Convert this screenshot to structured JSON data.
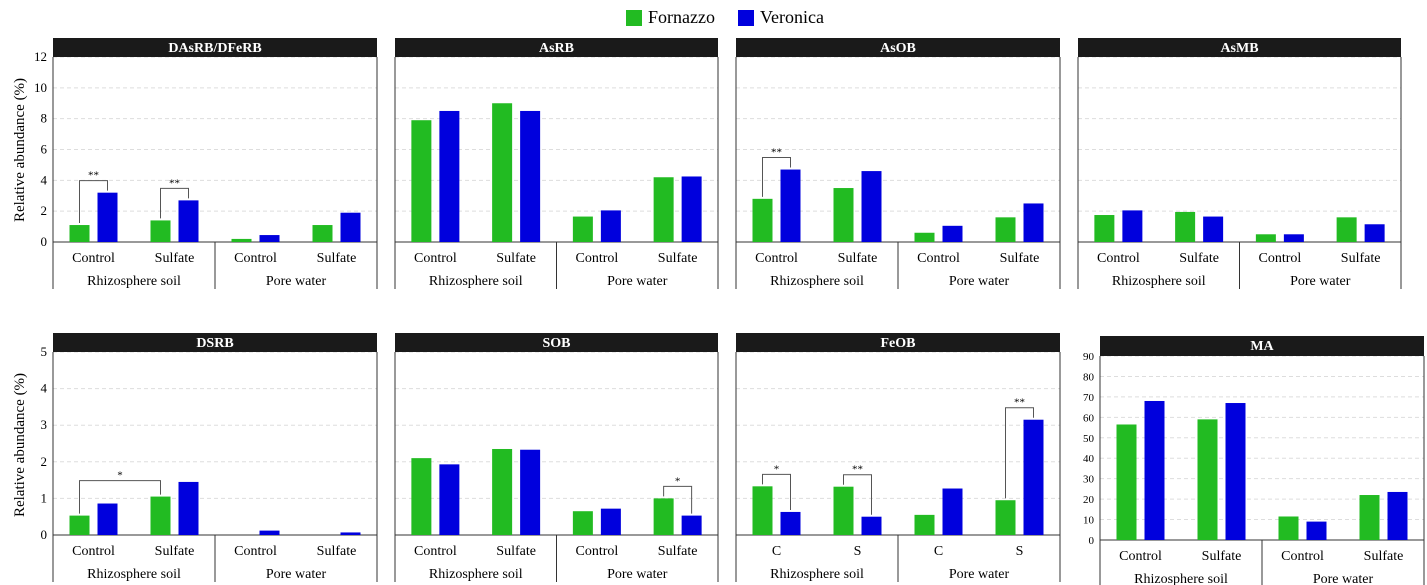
{
  "legend": {
    "series_a": "Fornazzo",
    "series_b": "Veronica"
  },
  "colors": {
    "series_a": "#22bb22",
    "series_b": "#0000dd",
    "header_bg": "#1a1a1a",
    "header_text": "#ffffff"
  },
  "ylabel": "Relative abundance (%)",
  "chart_data": [
    {
      "type": "bar",
      "title": "DAsRB/DFeRB",
      "ylim": [
        0,
        12
      ],
      "yticks": [
        0,
        2,
        4,
        6,
        8,
        10,
        12
      ],
      "categories": [
        "Control",
        "Sulfate",
        "Control",
        "Sulfate"
      ],
      "groups": [
        "Rhizosphere soil",
        "Pore water"
      ],
      "series": [
        {
          "name": "Fornazzo",
          "values": [
            1.1,
            1.4,
            0.2,
            1.1
          ]
        },
        {
          "name": "Veronica",
          "values": [
            3.2,
            2.7,
            0.45,
            1.9
          ]
        }
      ],
      "annotations": [
        {
          "category": 0,
          "label": "**"
        },
        {
          "category": 1,
          "label": "**"
        }
      ]
    },
    {
      "type": "bar",
      "title": "AsRB",
      "ylim": [
        0,
        12
      ],
      "yticks": [
        0,
        2,
        4,
        6,
        8,
        10,
        12
      ],
      "categories": [
        "Control",
        "Sulfate",
        "Control",
        "Sulfate"
      ],
      "groups": [
        "Rhizosphere soil",
        "Pore water"
      ],
      "series": [
        {
          "name": "Fornazzo",
          "values": [
            7.9,
            9.0,
            1.65,
            4.2
          ]
        },
        {
          "name": "Veronica",
          "values": [
            8.5,
            8.5,
            2.05,
            4.25
          ]
        }
      ],
      "annotations": []
    },
    {
      "type": "bar",
      "title": "AsOB",
      "ylim": [
        0,
        12
      ],
      "yticks": [
        0,
        2,
        4,
        6,
        8,
        10,
        12
      ],
      "categories": [
        "Control",
        "Sulfate",
        "Control",
        "Sulfate"
      ],
      "groups": [
        "Rhizosphere soil",
        "Pore water"
      ],
      "series": [
        {
          "name": "Fornazzo",
          "values": [
            2.8,
            3.5,
            0.6,
            1.6
          ]
        },
        {
          "name": "Veronica",
          "values": [
            4.7,
            4.6,
            1.05,
            2.5
          ]
        }
      ],
      "annotations": [
        {
          "category": 0,
          "label": "**"
        }
      ]
    },
    {
      "type": "bar",
      "title": "AsMB",
      "ylim": [
        0,
        12
      ],
      "yticks": [
        0,
        2,
        4,
        6,
        8,
        10,
        12
      ],
      "categories": [
        "Control",
        "Sulfate",
        "Control",
        "Sulfate"
      ],
      "groups": [
        "Rhizosphere soil",
        "Pore water"
      ],
      "series": [
        {
          "name": "Fornazzo",
          "values": [
            1.75,
            1.95,
            0.5,
            1.6
          ]
        },
        {
          "name": "Veronica",
          "values": [
            2.05,
            1.65,
            0.5,
            1.15
          ]
        }
      ],
      "annotations": []
    },
    {
      "type": "bar",
      "title": "DSRB",
      "ylim": [
        0,
        5
      ],
      "yticks": [
        0,
        1,
        2,
        3,
        4,
        5
      ],
      "categories": [
        "Control",
        "Sulfate",
        "Control",
        "Sulfate"
      ],
      "groups": [
        "Rhizosphere soil",
        "Pore water"
      ],
      "series": [
        {
          "name": "Fornazzo",
          "values": [
            0.53,
            1.05,
            0.0,
            0.0
          ]
        },
        {
          "name": "Veronica",
          "values": [
            0.86,
            1.45,
            0.12,
            0.07
          ]
        }
      ],
      "annotations": [
        {
          "from_category": 0,
          "to_category": 1,
          "label": "*"
        }
      ]
    },
    {
      "type": "bar",
      "title": "SOB",
      "ylim": [
        0,
        5
      ],
      "yticks": [
        0,
        1,
        2,
        3,
        4,
        5
      ],
      "categories": [
        "Control",
        "Sulfate",
        "Control",
        "Sulfate"
      ],
      "groups": [
        "Rhizosphere soil",
        "Pore water"
      ],
      "series": [
        {
          "name": "Fornazzo",
          "values": [
            2.1,
            2.35,
            0.65,
            1.0
          ]
        },
        {
          "name": "Veronica",
          "values": [
            1.93,
            2.33,
            0.72,
            0.53
          ]
        }
      ],
      "annotations": [
        {
          "category": 3,
          "label": "*"
        }
      ]
    },
    {
      "type": "bar",
      "title": "FeOB",
      "ylim": [
        0,
        5
      ],
      "yticks": [
        0,
        1,
        2,
        3,
        4,
        5
      ],
      "categories": [
        "C",
        "S",
        "C",
        "S"
      ],
      "groups": [
        "Rhizosphere soil",
        "Pore water"
      ],
      "series": [
        {
          "name": "Fornazzo",
          "values": [
            1.33,
            1.32,
            0.55,
            0.95
          ]
        },
        {
          "name": "Veronica",
          "values": [
            0.63,
            0.5,
            1.27,
            3.15
          ]
        }
      ],
      "annotations": [
        {
          "category": 0,
          "label": "*"
        },
        {
          "category": 1,
          "label": "**"
        },
        {
          "category": 3,
          "label": "**"
        }
      ]
    },
    {
      "type": "bar",
      "title": "MA",
      "ylim": [
        0,
        90
      ],
      "yticks": [
        0,
        10,
        20,
        30,
        40,
        50,
        60,
        70,
        80,
        90
      ],
      "categories": [
        "Control",
        "Sulfate",
        "Control",
        "Sulfate"
      ],
      "groups": [
        "Rhizosphere soil",
        "Pore water"
      ],
      "series": [
        {
          "name": "Fornazzo",
          "values": [
            56.5,
            59.0,
            11.5,
            22.0
          ]
        },
        {
          "name": "Veronica",
          "values": [
            68.0,
            67.0,
            9.0,
            23.5
          ]
        }
      ],
      "annotations": []
    }
  ]
}
